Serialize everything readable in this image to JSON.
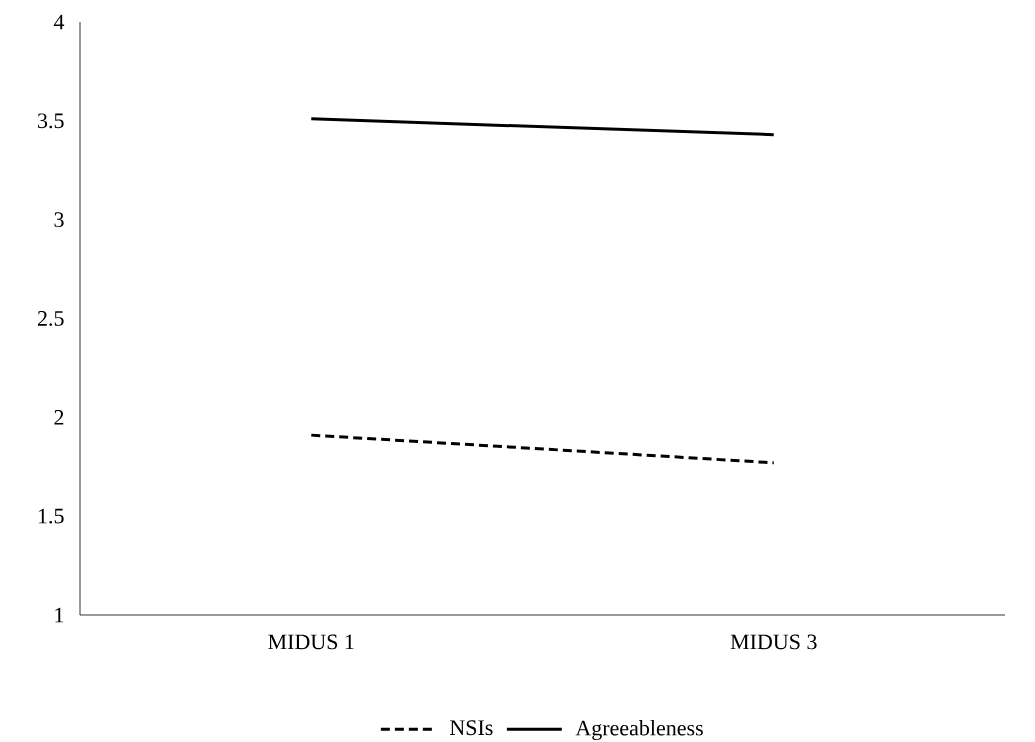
{
  "chart_data": {
    "type": "line",
    "categories": [
      "MIDUS 1",
      "MIDUS 3"
    ],
    "series": [
      {
        "name": "NSIs",
        "color": "#000000",
        "line_style": "dashed",
        "values": [
          1.91,
          1.77
        ]
      },
      {
        "name": "Agreeableness",
        "color": "#000000",
        "line_style": "solid",
        "values": [
          3.51,
          3.43
        ]
      }
    ],
    "ylim": [
      1,
      4
    ],
    "yticks": [
      1,
      1.5,
      2,
      2.5,
      3,
      3.5,
      4
    ],
    "legend": "bottom"
  }
}
